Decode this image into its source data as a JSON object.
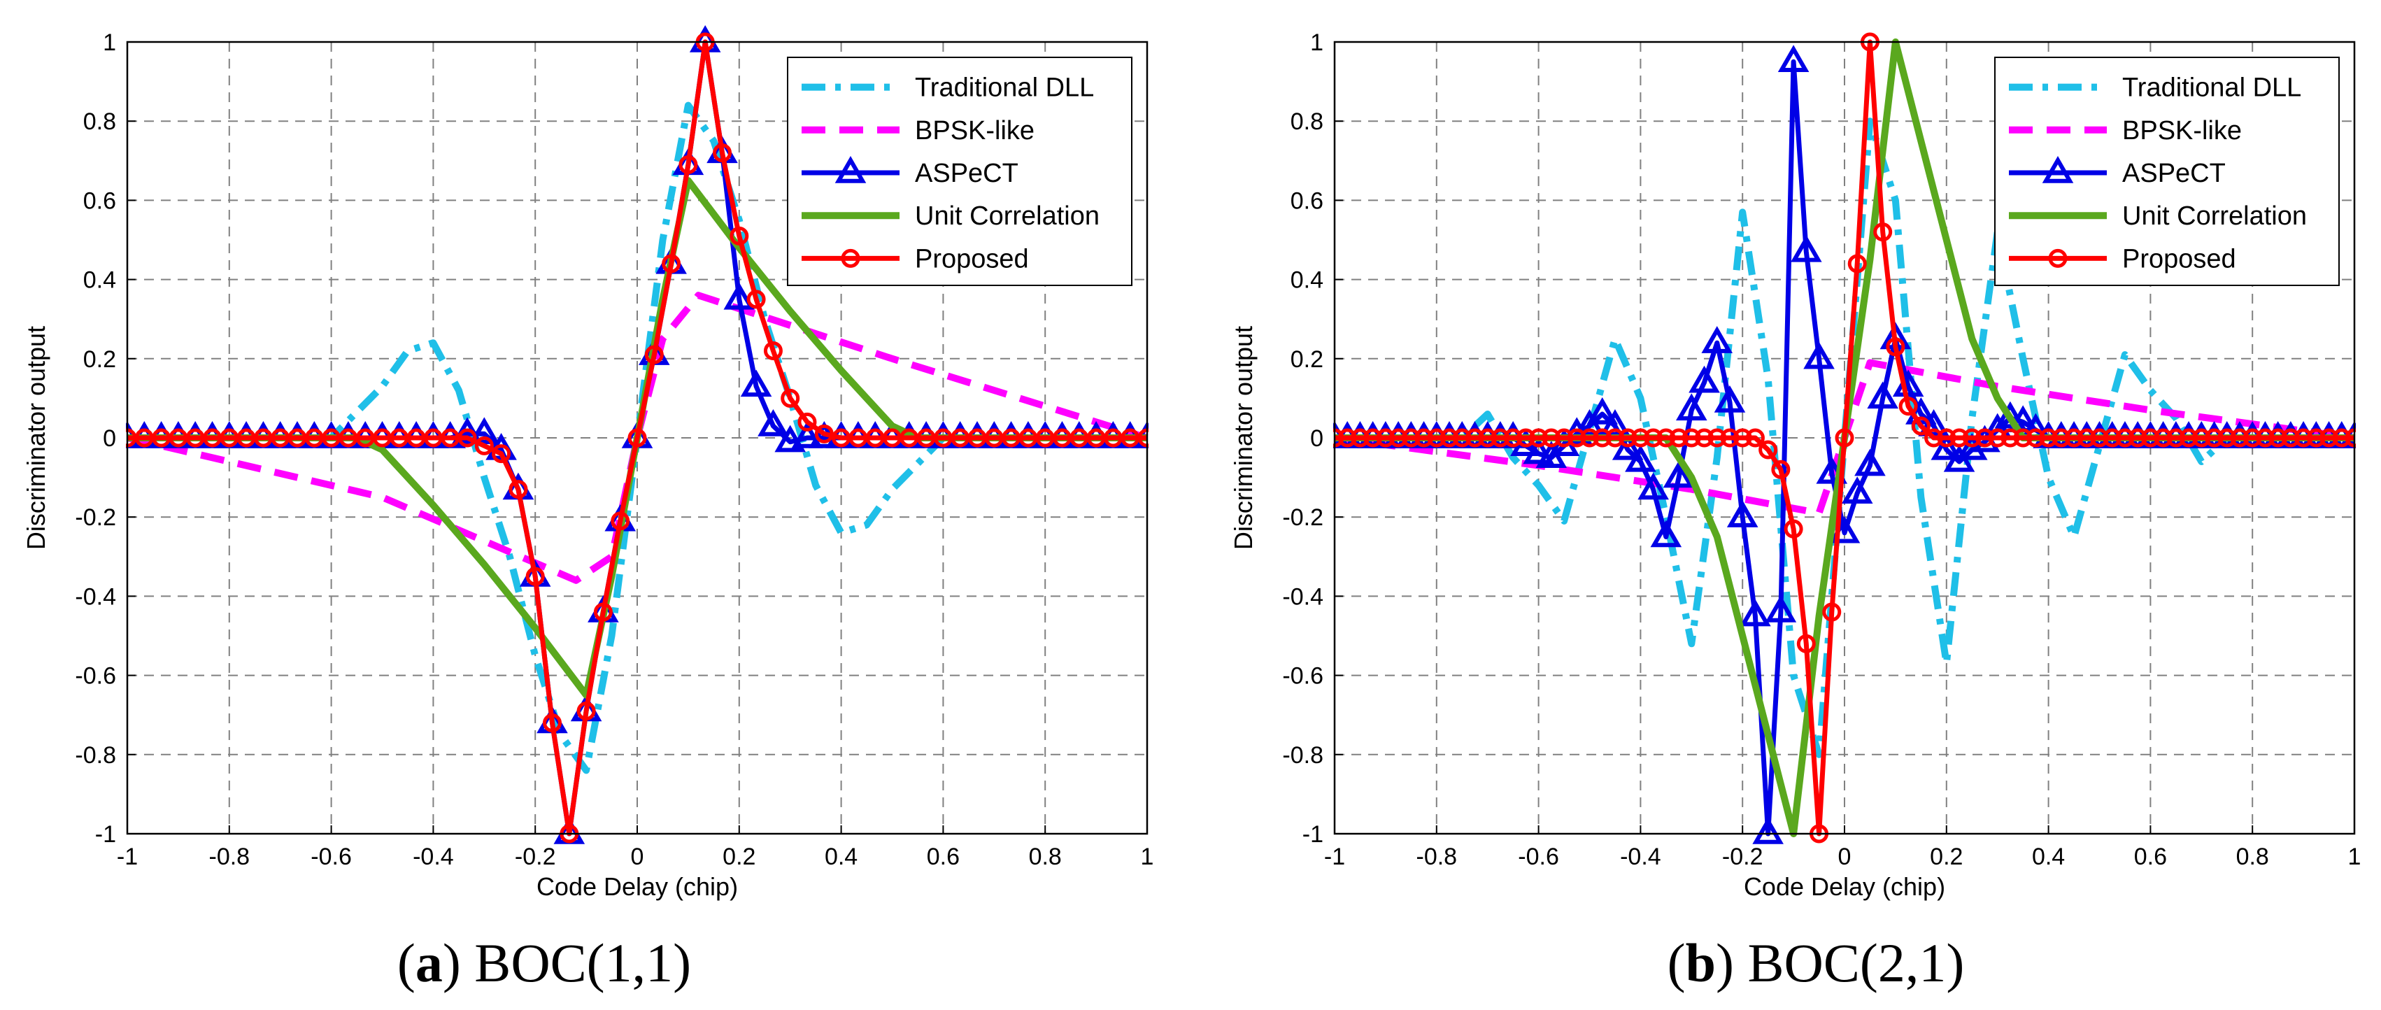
{
  "figure_captions": [
    {
      "letter": "a",
      "title": ") BOC(1,1)",
      "open": "("
    },
    {
      "letter": "b",
      "title": ") BOC(2,1)",
      "open": "("
    }
  ],
  "colors": {
    "traditional": "#1fbfe8",
    "bpsk": "#ff00ff",
    "aspect": "#0000e6",
    "unit": "#5aa81e",
    "proposed": "#ff0000",
    "grid": "#808080"
  },
  "chart_data": [
    {
      "type": "line",
      "title": "BOC(1,1)",
      "xlabel": "Code Delay (chip)",
      "ylabel": "Discriminator output",
      "xlim": [
        -1,
        1
      ],
      "ylim": [
        -1,
        1
      ],
      "xticks": [
        -1,
        -0.8,
        -0.6,
        -0.4,
        -0.2,
        0,
        0.2,
        0.4,
        0.6,
        0.8,
        1
      ],
      "xtick_labels": [
        "-1",
        "-0.8",
        "-0.6",
        "-0.4",
        "-0.2",
        "0",
        "0.2",
        "0.4",
        "0.6",
        "0.8",
        "1"
      ],
      "yticks": [
        -1,
        -0.8,
        -0.6,
        -0.4,
        -0.2,
        0,
        0.2,
        0.4,
        0.6,
        0.8,
        1
      ],
      "ytick_labels": [
        "-1",
        "-0.8",
        "-0.6",
        "-0.4",
        "-0.2",
        "0",
        "0.2",
        "0.4",
        "0.6",
        "0.8",
        "1"
      ],
      "grid": true,
      "legend_position": "top-right",
      "series": [
        {
          "name": "Traditional DLL",
          "style": "dashdot",
          "marker": "none",
          "color_key": "traditional",
          "x": [
            -1,
            -0.6,
            -0.5,
            -0.45,
            -0.4,
            -0.35,
            -0.3,
            -0.25,
            -0.2,
            -0.15,
            -0.1,
            -0.05,
            0,
            0.05,
            0.1,
            0.15,
            0.2,
            0.25,
            0.3,
            0.35,
            0.4,
            0.45,
            0.5,
            0.6,
            1
          ],
          "y": [
            0,
            0,
            0.13,
            0.22,
            0.24,
            0.12,
            -0.1,
            -0.3,
            -0.55,
            -0.75,
            -0.84,
            -0.5,
            0,
            0.5,
            0.84,
            0.75,
            0.55,
            0.3,
            0.1,
            -0.12,
            -0.24,
            -0.22,
            -0.13,
            0,
            0
          ]
        },
        {
          "name": "BPSK-like",
          "style": "dashed",
          "marker": "none",
          "color_key": "bpsk",
          "x": [
            -1,
            -0.5,
            -0.12,
            -0.05,
            0,
            0.05,
            0.12,
            0.5,
            1
          ],
          "y": [
            0,
            -0.15,
            -0.36,
            -0.3,
            0,
            0.25,
            0.36,
            0.2,
            0
          ]
        },
        {
          "name": "ASPeCT",
          "style": "solid",
          "marker": "triangle",
          "color_key": "aspect",
          "x": [
            -1,
            -0.9667,
            -0.9333,
            -0.9,
            -0.8667,
            -0.8333,
            -0.8,
            -0.7667,
            -0.7333,
            -0.7,
            -0.6667,
            -0.6333,
            -0.6,
            -0.5667,
            -0.5333,
            -0.5,
            -0.4667,
            -0.4333,
            -0.4,
            -0.3667,
            -0.3333,
            -0.3,
            -0.2667,
            -0.2333,
            -0.2,
            -0.1667,
            -0.1333,
            -0.1,
            -0.0667,
            -0.0333,
            0,
            0.0333,
            0.0667,
            0.1,
            0.1333,
            0.1667,
            0.2,
            0.2333,
            0.2667,
            0.3,
            0.3333,
            0.3667,
            0.4,
            0.4333,
            0.4667,
            0.5,
            0.5333,
            0.5667,
            0.6,
            0.6333,
            0.6667,
            0.7,
            0.7333,
            0.7667,
            0.8,
            0.8333,
            0.8667,
            0.9,
            0.9333,
            0.9667,
            1
          ],
          "y": [
            0,
            0,
            0,
            0,
            0,
            0,
            0,
            0,
            0,
            0,
            0,
            0,
            0,
            0,
            0,
            0,
            0,
            0,
            0,
            0,
            0.01,
            0.01,
            -0.03,
            -0.13,
            -0.35,
            -0.72,
            -1,
            -0.69,
            -0.44,
            -0.21,
            0,
            0.21,
            0.44,
            0.69,
            1,
            0.72,
            0.35,
            0.13,
            0.03,
            -0.01,
            0,
            0,
            0,
            0,
            0,
            0,
            0,
            0,
            0,
            0,
            0,
            0,
            0,
            0,
            0,
            0,
            0,
            0,
            0,
            0,
            0
          ]
        },
        {
          "name": "Unit Correlation",
          "style": "solid",
          "marker": "none",
          "color_key": "unit",
          "x": [
            -1,
            -0.55,
            -0.5,
            -0.45,
            -0.4,
            -0.3,
            -0.2,
            -0.1,
            -0.05,
            0,
            0.05,
            0.1,
            0.2,
            0.3,
            0.4,
            0.45,
            0.5,
            0.55,
            1
          ],
          "y": [
            0,
            0,
            -0.03,
            -0.1,
            -0.17,
            -0.32,
            -0.48,
            -0.65,
            -0.35,
            0,
            0.35,
            0.65,
            0.48,
            0.32,
            0.17,
            0.1,
            0.03,
            0,
            0
          ]
        },
        {
          "name": "Proposed",
          "style": "solid",
          "marker": "circle",
          "color_key": "proposed",
          "x": [
            -1,
            -0.9667,
            -0.9333,
            -0.9,
            -0.8667,
            -0.8333,
            -0.8,
            -0.7667,
            -0.7333,
            -0.7,
            -0.6667,
            -0.6333,
            -0.6,
            -0.5667,
            -0.5333,
            -0.5,
            -0.4667,
            -0.4333,
            -0.4,
            -0.3667,
            -0.3333,
            -0.3,
            -0.2667,
            -0.2333,
            -0.2,
            -0.1667,
            -0.1333,
            -0.1,
            -0.0667,
            -0.0333,
            0,
            0.0333,
            0.0667,
            0.1,
            0.1333,
            0.1667,
            0.2,
            0.2333,
            0.2667,
            0.3,
            0.3333,
            0.3667,
            0.4,
            0.4333,
            0.4667,
            0.5,
            0.5333,
            0.5667,
            0.6,
            0.6333,
            0.6667,
            0.7,
            0.7333,
            0.7667,
            0.8,
            0.8333,
            0.8667,
            0.9,
            0.9333,
            0.9667,
            1
          ],
          "y": [
            0,
            0,
            0,
            0,
            0,
            0,
            0,
            0,
            0,
            0,
            0,
            0,
            0,
            0,
            0,
            0,
            0,
            0,
            0,
            0,
            0,
            -0.02,
            -0.04,
            -0.13,
            -0.35,
            -0.72,
            -1,
            -0.69,
            -0.44,
            -0.21,
            0,
            0.21,
            0.44,
            0.69,
            1,
            0.72,
            0.51,
            0.35,
            0.22,
            0.1,
            0.04,
            0.01,
            0,
            0,
            0,
            0,
            0,
            0,
            0,
            0,
            0,
            0,
            0,
            0,
            0,
            0,
            0,
            0,
            0,
            0,
            0
          ]
        }
      ]
    },
    {
      "type": "line",
      "title": "BOC(2,1)",
      "xlabel": "Code Delay (chip)",
      "ylabel": "Discriminator output",
      "xlim": [
        -1,
        1
      ],
      "ylim": [
        -1,
        1
      ],
      "xticks": [
        -1,
        -0.8,
        -0.6,
        -0.4,
        -0.2,
        0,
        0.2,
        0.4,
        0.6,
        0.8,
        1
      ],
      "xtick_labels": [
        "-1",
        "-0.8",
        "-0.6",
        "-0.4",
        "-0.2",
        "0",
        "0.2",
        "0.4",
        "0.6",
        "0.8",
        "1"
      ],
      "yticks": [
        -1,
        -0.8,
        -0.6,
        -0.4,
        -0.2,
        0,
        0.2,
        0.4,
        0.6,
        0.8,
        1
      ],
      "ytick_labels": [
        "-1",
        "-0.8",
        "-0.6",
        "-0.4",
        "-0.2",
        "0",
        "0.2",
        "0.4",
        "0.6",
        "0.8",
        "1"
      ],
      "grid": true,
      "legend_position": "top-right",
      "series": [
        {
          "name": "Traditional DLL",
          "style": "dashdot",
          "marker": "none",
          "color_key": "traditional",
          "x": [
            -1,
            -0.75,
            -0.7,
            -0.65,
            -0.6,
            -0.55,
            -0.5,
            -0.45,
            -0.4,
            -0.35,
            -0.3,
            -0.25,
            -0.2,
            -0.15,
            -0.1,
            -0.05,
            0,
            0.05,
            0.1,
            0.15,
            0.2,
            0.25,
            0.3,
            0.35,
            0.4,
            0.45,
            0.5,
            0.55,
            0.6,
            0.65,
            0.7,
            0.75,
            1
          ],
          "y": [
            0,
            0,
            0.06,
            -0.05,
            -0.12,
            -0.21,
            0.02,
            0.25,
            0.1,
            -0.2,
            -0.52,
            -0.05,
            0.57,
            0.15,
            -0.6,
            -0.8,
            0,
            0.8,
            0.6,
            -0.15,
            -0.57,
            0.05,
            0.52,
            0.2,
            -0.1,
            -0.25,
            -0.02,
            0.21,
            0.12,
            0.05,
            -0.06,
            0,
            0
          ]
        },
        {
          "name": "BPSK-like",
          "style": "dashed",
          "marker": "none",
          "color_key": "bpsk",
          "x": [
            -1,
            -0.6,
            -0.3,
            -0.05,
            0,
            0.05,
            0.3,
            0.6,
            1
          ],
          "y": [
            0,
            -0.07,
            -0.13,
            -0.19,
            0,
            0.19,
            0.13,
            0.07,
            0
          ]
        },
        {
          "name": "ASPeCT",
          "style": "solid",
          "marker": "triangle",
          "color_key": "aspect",
          "x": [
            -1,
            -0.975,
            -0.95,
            -0.925,
            -0.9,
            -0.875,
            -0.85,
            -0.825,
            -0.8,
            -0.775,
            -0.75,
            -0.725,
            -0.7,
            -0.675,
            -0.65,
            -0.625,
            -0.6,
            -0.575,
            -0.55,
            -0.525,
            -0.5,
            -0.475,
            -0.45,
            -0.425,
            -0.4,
            -0.375,
            -0.35,
            -0.325,
            -0.3,
            -0.275,
            -0.25,
            -0.225,
            -0.2,
            -0.175,
            -0.15,
            -0.125,
            -0.1,
            -0.075,
            -0.05,
            -0.025,
            0,
            0.025,
            0.05,
            0.075,
            0.1,
            0.125,
            0.15,
            0.175,
            0.2,
            0.225,
            0.25,
            0.275,
            0.3,
            0.325,
            0.35,
            0.375,
            0.4,
            0.425,
            0.45,
            0.475,
            0.5,
            0.525,
            0.55,
            0.575,
            0.6,
            0.625,
            0.65,
            0.675,
            0.7,
            0.725,
            0.75,
            0.775,
            0.8,
            0.825,
            0.85,
            0.875,
            0.9,
            0.925,
            0.95,
            0.975,
            1
          ],
          "y": [
            0,
            0,
            0,
            0,
            0,
            0,
            0,
            0,
            0,
            0,
            0,
            0,
            0,
            0,
            0,
            -0.02,
            -0.04,
            -0.05,
            -0.02,
            0.01,
            0.03,
            0.06,
            0.03,
            -0.03,
            -0.06,
            -0.13,
            -0.25,
            -0.1,
            0.07,
            0.14,
            0.24,
            0.09,
            -0.2,
            -0.45,
            -1,
            -0.44,
            0.95,
            0.47,
            0.2,
            -0.09,
            -0.24,
            -0.14,
            -0.07,
            0.1,
            0.25,
            0.13,
            0.06,
            0.03,
            -0.03,
            -0.06,
            -0.03,
            -0.01,
            0.02,
            0.05,
            0.04,
            0.02,
            0,
            0,
            0,
            0,
            0,
            0,
            0,
            0,
            0,
            0,
            0,
            0,
            0,
            0,
            0,
            0,
            0,
            0,
            0,
            0,
            0,
            0,
            0,
            0,
            0
          ]
        },
        {
          "name": "Unit Correlation",
          "style": "solid",
          "marker": "none",
          "color_key": "unit",
          "x": [
            -1,
            -0.35,
            -0.3,
            -0.25,
            -0.2,
            -0.15,
            -0.1,
            -0.05,
            0,
            0.05,
            0.1,
            0.15,
            0.2,
            0.25,
            0.3,
            0.35,
            1
          ],
          "y": [
            0,
            0,
            -0.1,
            -0.25,
            -0.5,
            -0.75,
            -1,
            -0.45,
            0,
            0.45,
            1,
            0.75,
            0.5,
            0.25,
            0.1,
            0,
            0
          ]
        },
        {
          "name": "Proposed",
          "style": "solid",
          "marker": "circle",
          "color_key": "proposed",
          "x": [
            -1,
            -0.975,
            -0.95,
            -0.925,
            -0.9,
            -0.875,
            -0.85,
            -0.825,
            -0.8,
            -0.775,
            -0.75,
            -0.725,
            -0.7,
            -0.675,
            -0.65,
            -0.625,
            -0.6,
            -0.575,
            -0.55,
            -0.525,
            -0.5,
            -0.475,
            -0.45,
            -0.425,
            -0.4,
            -0.375,
            -0.35,
            -0.325,
            -0.3,
            -0.275,
            -0.25,
            -0.225,
            -0.2,
            -0.175,
            -0.15,
            -0.125,
            -0.1,
            -0.075,
            -0.05,
            -0.025,
            0,
            0.025,
            0.05,
            0.075,
            0.1,
            0.125,
            0.15,
            0.175,
            0.2,
            0.225,
            0.25,
            0.275,
            0.3,
            0.325,
            0.35,
            0.375,
            0.4,
            0.425,
            0.45,
            0.475,
            0.5,
            0.525,
            0.55,
            0.575,
            0.6,
            0.625,
            0.65,
            0.675,
            0.7,
            0.725,
            0.75,
            0.775,
            0.8,
            0.825,
            0.85,
            0.875,
            0.9,
            0.925,
            0.95,
            0.975,
            1
          ],
          "y": [
            0,
            0,
            0,
            0,
            0,
            0,
            0,
            0,
            0,
            0,
            0,
            0,
            0,
            0,
            0,
            0,
            0,
            0,
            0,
            0,
            0,
            0,
            0,
            0,
            0,
            0,
            0,
            0,
            0,
            0,
            0,
            0,
            0,
            0,
            -0.03,
            -0.08,
            -0.23,
            -0.52,
            -1,
            -0.44,
            0,
            0.44,
            1,
            0.52,
            0.23,
            0.08,
            0.03,
            0,
            0,
            0,
            0,
            0,
            0,
            0,
            0,
            0,
            0,
            0,
            0,
            0,
            0,
            0,
            0,
            0,
            0,
            0,
            0,
            0,
            0,
            0,
            0,
            0,
            0,
            0,
            0,
            0,
            0,
            0,
            0,
            0,
            0
          ]
        }
      ]
    }
  ]
}
